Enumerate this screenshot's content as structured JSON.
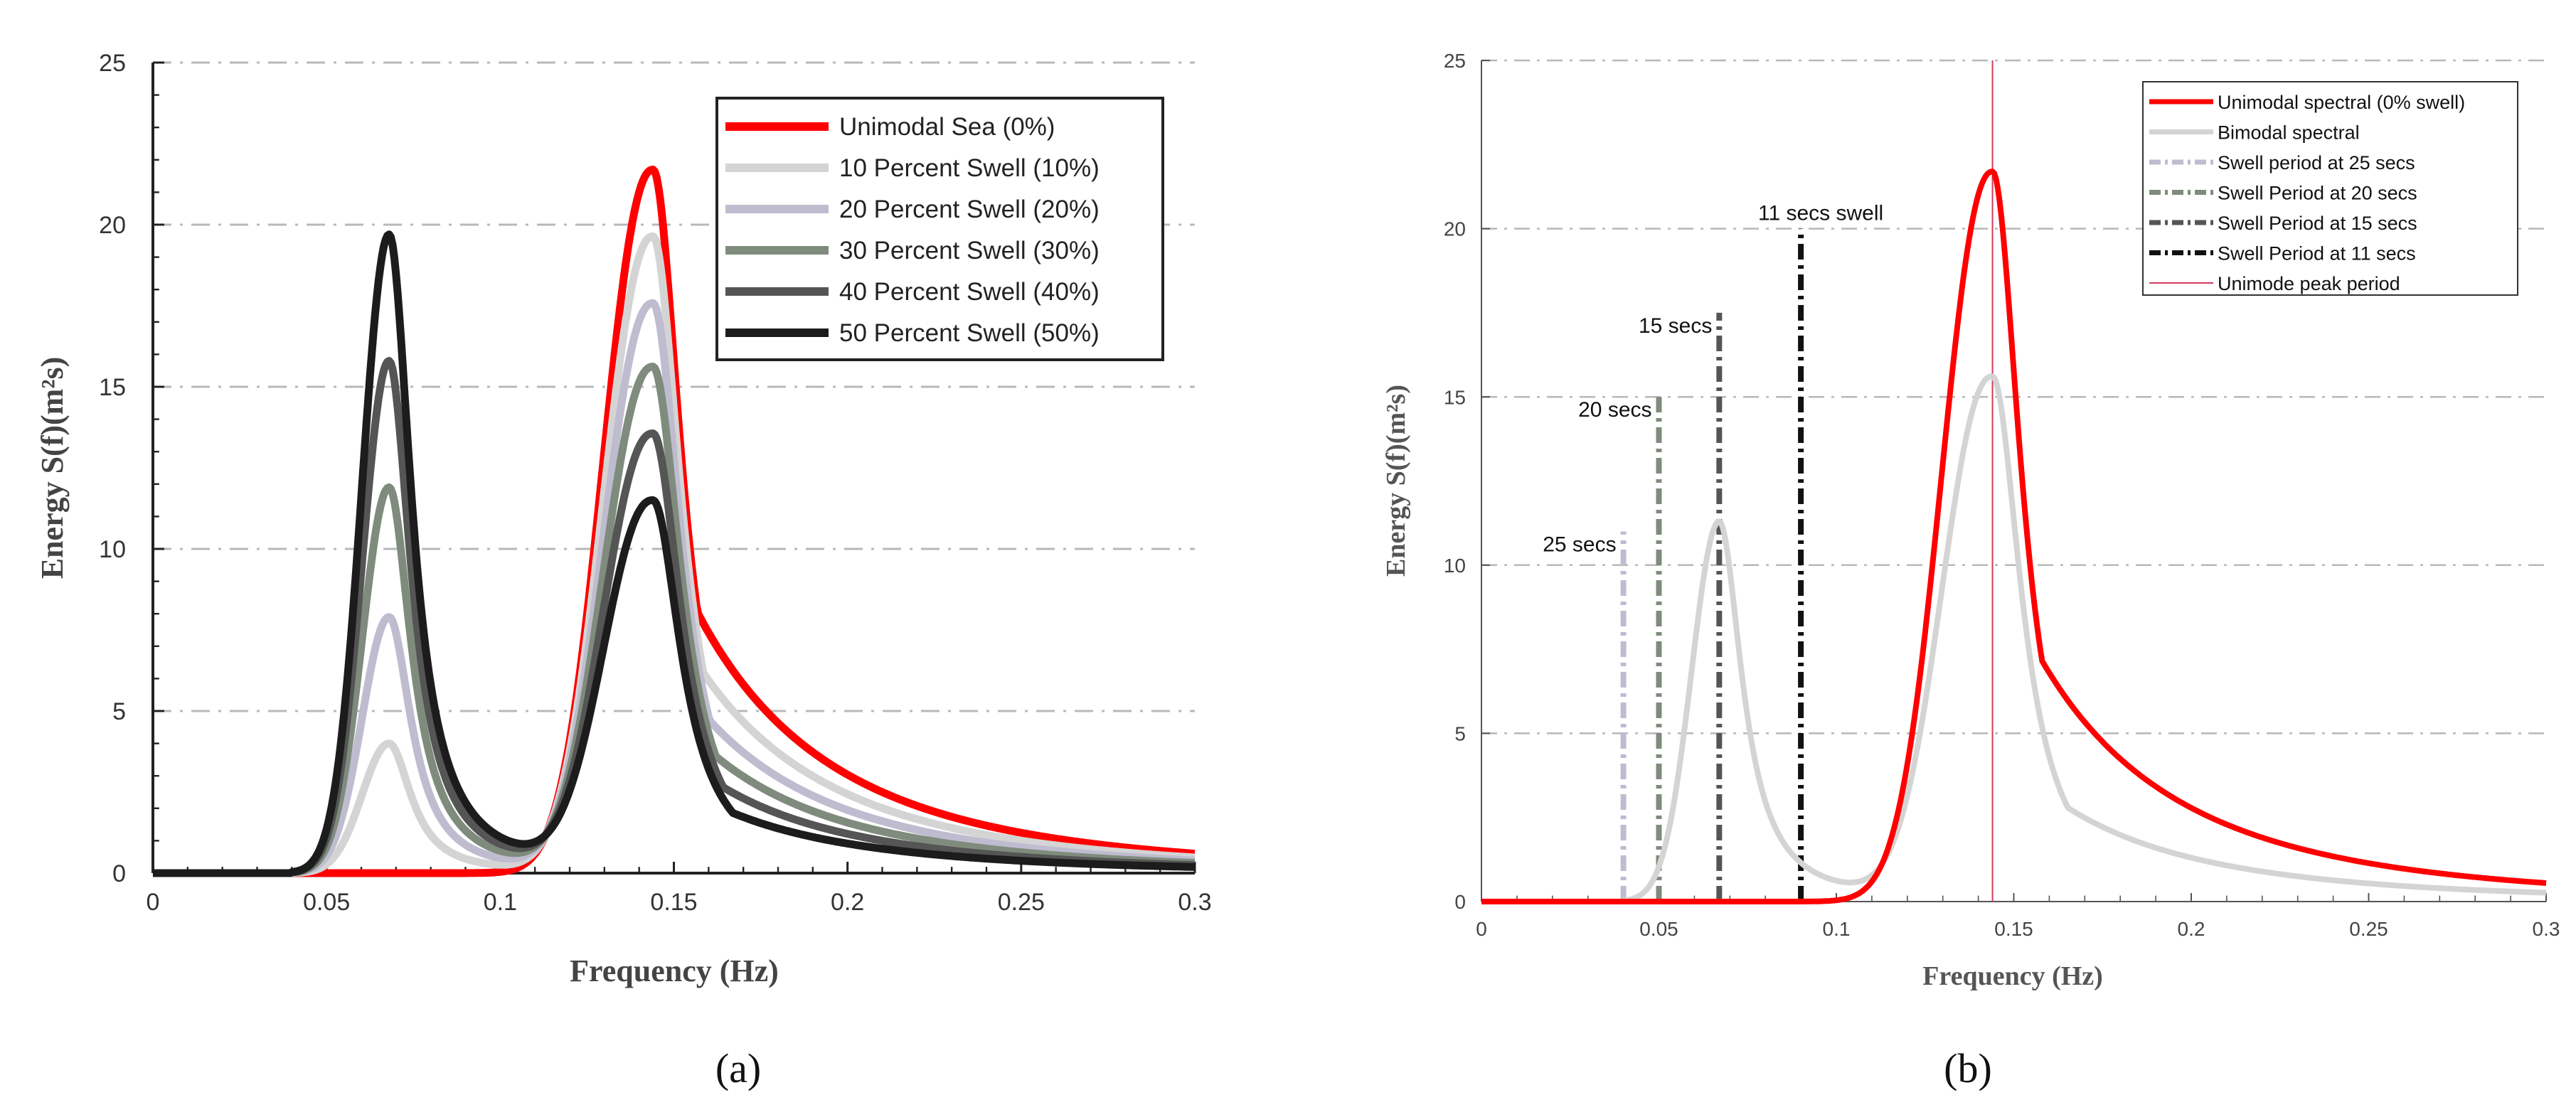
{
  "chart_data": [
    {
      "type": "line",
      "panel_label": "(a)",
      "title": "",
      "xlabel": "Frequency (Hz)",
      "ylabel": "Energy S(f)(m²s)",
      "xlim": [
        0,
        0.3
      ],
      "ylim": [
        0,
        25
      ],
      "xticks": [
        0,
        0.05,
        0.1,
        0.15,
        0.2,
        0.25,
        0.3
      ],
      "xtick_labels": [
        "0",
        "0.05",
        "0.1",
        "0.15",
        "0.2",
        "0.25",
        "0.3"
      ],
      "yticks": [
        0,
        5,
        10,
        15,
        20,
        25
      ],
      "ytick_labels": [
        "0",
        "5",
        "10",
        "15",
        "20",
        "25"
      ],
      "grid": "horizontal dash-dot",
      "legend_position": "top-right",
      "series": [
        {
          "name": "Unimodal Sea  (0%)",
          "color": "#ff0000",
          "swell_peak": 0,
          "sea_peak": 21.7,
          "sea_tail": 0.6
        },
        {
          "name": "10 Percent Swell (10%)",
          "color": "#d4d4d4",
          "swell_peak": 4.0,
          "sea_peak": 19.6,
          "sea_tail": 0.53
        },
        {
          "name": "20 Percent Swell (20%)",
          "color": "#bfbcd0",
          "swell_peak": 7.9,
          "sea_peak": 17.5,
          "sea_tail": 0.47
        },
        {
          "name": "30 Percent Swell (30%)",
          "color": "#7f8c7d",
          "swell_peak": 11.9,
          "sea_peak": 15.5,
          "sea_tail": 0.42
        },
        {
          "name": "40 Percent Swell (40%)",
          "color": "#555555",
          "swell_peak": 15.8,
          "sea_peak": 13.4,
          "sea_tail": 0.37
        },
        {
          "name": "50 Percent Swell (50%)",
          "color": "#1c1c1c",
          "swell_peak": 19.7,
          "sea_peak": 11.3,
          "sea_tail": 0.32
        }
      ]
    },
    {
      "type": "line",
      "panel_label": "(b)",
      "title": "",
      "xlabel": "Frequency (Hz)",
      "ylabel": "Energy S(f)(m²s)",
      "xlim": [
        0,
        0.3
      ],
      "ylim": [
        0,
        25
      ],
      "xticks": [
        0,
        0.05,
        0.1,
        0.15,
        0.2,
        0.25,
        0.3
      ],
      "xtick_labels": [
        "0",
        "0.05",
        "0.1",
        "0.15",
        "0.2",
        "0.25",
        "0.3"
      ],
      "yticks": [
        0,
        5,
        10,
        15,
        20,
        25
      ],
      "ytick_labels": [
        "0",
        "5",
        "10",
        "15",
        "20",
        "25"
      ],
      "grid": "horizontal dash-dot",
      "legend_position": "top-right",
      "series": [
        {
          "name": "Unimodal spectral  (0% swell)",
          "color": "#ff0000",
          "swell_peak": 0,
          "sea_peak": 21.7,
          "sea_tail": 0.55
        },
        {
          "name": "Bimodal spectral",
          "color": "#d4d4d4",
          "swell_peak": 11.3,
          "sea_peak": 15.5,
          "sea_tail": 0.35,
          "swell_f": 0.067
        }
      ],
      "vlines": [
        {
          "name": "Swell period at 25 secs",
          "x": 0.04,
          "ymax": 11,
          "color": "#bfbcd0",
          "annotation": "25 secs"
        },
        {
          "name": "Swell Period at 20 secs",
          "x": 0.05,
          "ymax": 15,
          "color": "#7f8c7d",
          "annotation": "20 secs"
        },
        {
          "name": "Swell Period at 15 secs",
          "x": 0.067,
          "ymax": 17.5,
          "color": "#555555",
          "annotation": "15 secs"
        },
        {
          "name": "Swell Period at 11 secs",
          "x": 0.09,
          "ymax": 20,
          "color": "#111111",
          "annotation": "11 secs swell"
        },
        {
          "name": "Unimode peak period",
          "x": 0.144,
          "ymax": 25,
          "color": "#d33a5a",
          "annotation": ""
        }
      ]
    }
  ]
}
